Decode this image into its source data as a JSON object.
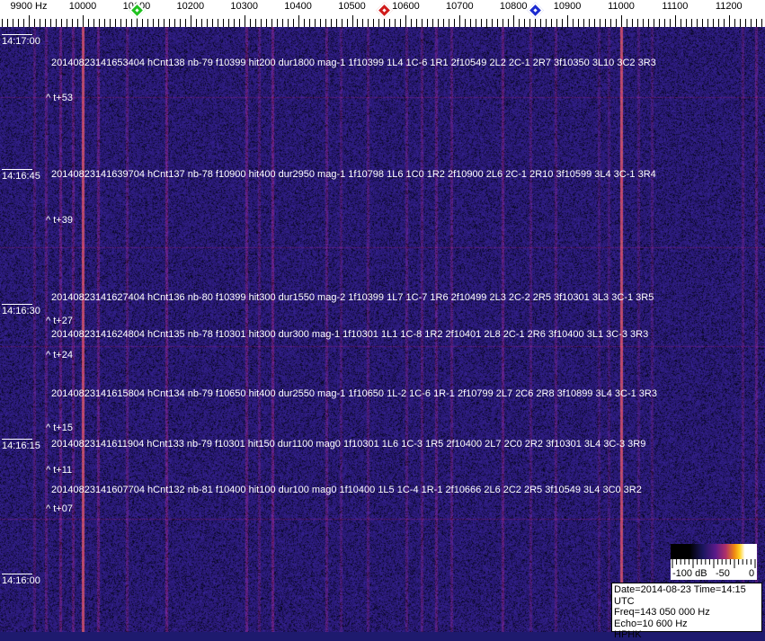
{
  "axis": {
    "unit_label": "9900 Hz",
    "freq_labels": [
      "10000",
      "10100",
      "10200",
      "10300",
      "10400",
      "10500",
      "10600",
      "10700",
      "10800",
      "10900",
      "11000",
      "11100",
      "11200"
    ],
    "freq_start_hz": 9900,
    "freq_step_hz": 100
  },
  "markers": [
    {
      "name": "green-marker",
      "freq_hz": 10100,
      "color": "#1fc21f"
    },
    {
      "name": "red-marker",
      "freq_hz": 10560,
      "color": "#d01a1a"
    },
    {
      "name": "blue-marker",
      "freq_hz": 10840,
      "color": "#1a2ad0"
    }
  ],
  "carriers_hz": [
    10000,
    11000
  ],
  "time_labels": [
    "14:17:00",
    "14:16:45",
    "14:16:30",
    "14:16:15",
    "14:16:00"
  ],
  "detections": [
    "20140823141653404 hCnt138 nb-79 f10399 hit200 dur1800 mag-1 1f10399 1L4 1C-6 1R1 2f10549 2L2 2C-1 2R7 3f10350 3L10 3C2 3R3",
    "20140823141639704 hCnt137 nb-78 f10900 hit400 dur2950 mag-1 1f10798 1L6 1C0 1R2 2f10900 2L6 2C-1 2R10 3f10599 3L4 3C-1 3R4",
    "20140823141627404 hCnt136 nb-80 f10399 hit300 dur1550 mag-2 1f10399 1L7 1C-7 1R6 2f10499 2L3 2C-2 2R5 3f10301 3L3 3C-1 3R5",
    "20140823141624804 hCnt135 nb-78 f10301 hit300 dur300 mag-1 1f10301 1L1 1C-8 1R2 2f10401 2L8 2C-1 2R6 3f10400 3L1 3C-3 3R3",
    "20140823141615804 hCnt134 nb-79 f10650 hit400 dur2550 mag-1 1f10650 1L-2 1C-6 1R-1 2f10799 2L7 2C6 2R8 3f10899 3L4 3C-1 3R3",
    "20140823141611904 hCnt133 nb-79 f10301 hit150 dur1100 mag0 1f10301 1L6 1C-3 1R5 2f10400 2L7 2C0 2R2 3f10301 3L4 3C-3 3R9",
    "20140823141607704 hCnt132 nb-81 f10400 hit100 dur100 mag0 1f10400 1L5 1C-4 1R-1 2f10666 2L6 2C2 2R5 3f10549 3L4 3C0 3R2"
  ],
  "offsets": [
    "^ t+53",
    "^ t+39",
    "^ t+27",
    "^ t+24",
    "^ t+15",
    "^ t+11",
    "^ t+07"
  ],
  "colorbar": {
    "labels": [
      "-100 dB",
      "-50",
      "0"
    ]
  },
  "info": {
    "date_time": "Date=2014-08-23 Time=14:15 UTC",
    "freq": "Freq=143 050 000 Hz",
    "echo": "Echo=10 600 Hz",
    "station": "HPHK"
  }
}
